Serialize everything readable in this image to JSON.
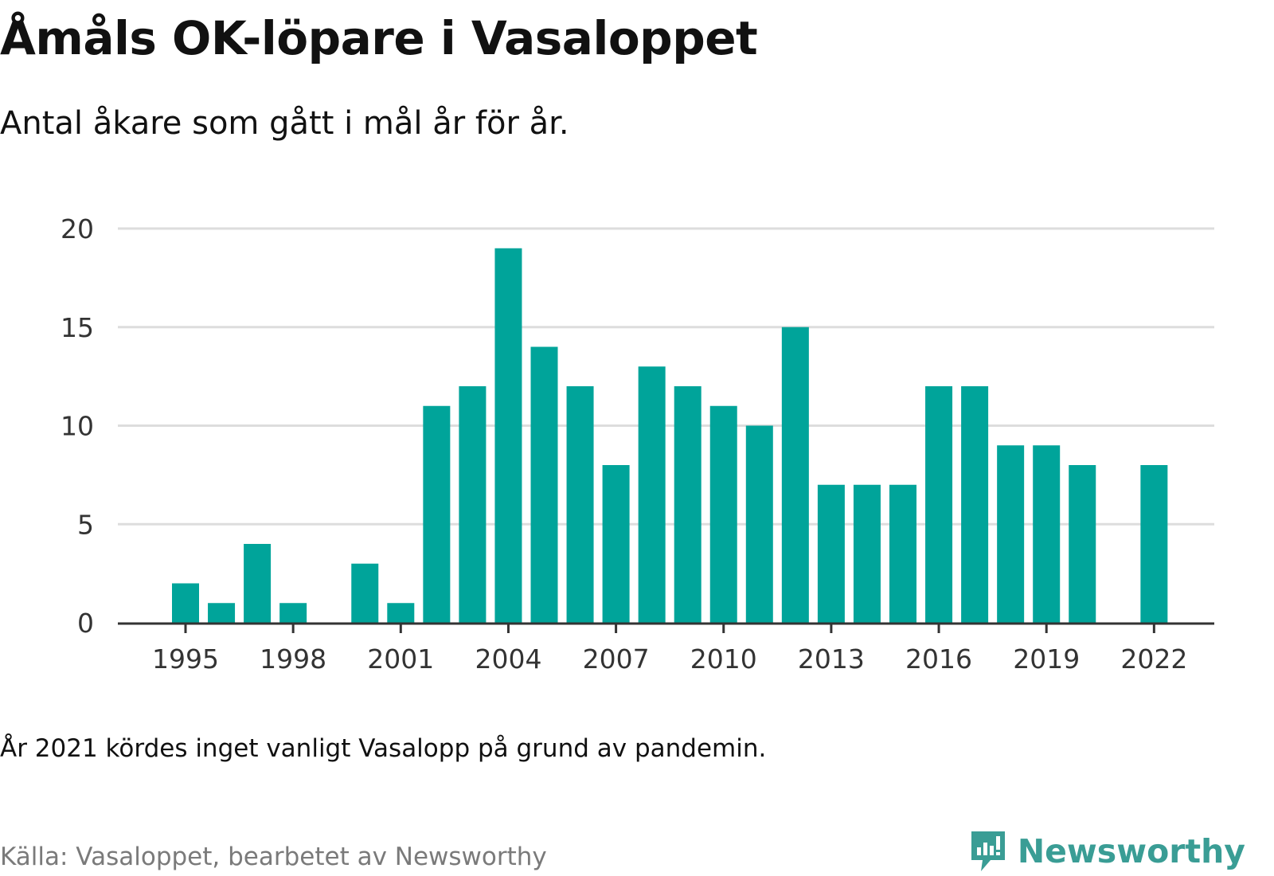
{
  "header": {
    "title": "Åmåls OK-löpare i Vasaloppet",
    "subtitle": "Antal åkare som gått i mål år för år."
  },
  "footer": {
    "note": "År 2021 kördes inget vanligt Vasalopp på grund av pandemin.",
    "source": "Källa: Vasaloppet, bearbetet av Newsworthy",
    "logo_text": "Newsworthy"
  },
  "colors": {
    "bar": "#00a49a",
    "grid": "#dddddd",
    "axis": "#333333",
    "logo": "#3a9d95"
  },
  "chart_data": {
    "type": "bar",
    "title": "Åmåls OK-löpare i Vasaloppet",
    "subtitle": "Antal åkare som gått i mål år för år.",
    "categories": [
      1995,
      1996,
      1997,
      1998,
      1999,
      2000,
      2001,
      2002,
      2003,
      2004,
      2005,
      2006,
      2007,
      2008,
      2009,
      2010,
      2011,
      2012,
      2013,
      2014,
      2015,
      2016,
      2017,
      2018,
      2019,
      2020,
      2021,
      2022
    ],
    "values": [
      2,
      1,
      4,
      1,
      0,
      3,
      1,
      11,
      12,
      19,
      14,
      12,
      8,
      13,
      12,
      11,
      10,
      15,
      7,
      7,
      7,
      12,
      12,
      9,
      9,
      8,
      null,
      8
    ],
    "xticks": [
      1995,
      1998,
      2001,
      2004,
      2007,
      2010,
      2013,
      2016,
      2019,
      2022
    ],
    "yticks": [
      0,
      5,
      10,
      15,
      20
    ],
    "ylim": [
      0,
      20
    ],
    "grid": true
  }
}
